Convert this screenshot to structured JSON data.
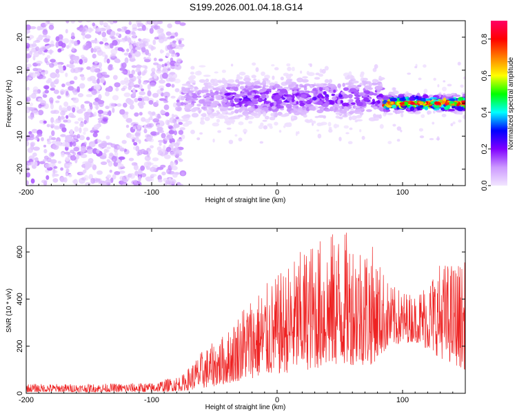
{
  "title": "S199.2026.001.04.18.G14",
  "chart_data": [
    {
      "type": "heatmap",
      "name": "spectrogram",
      "xlabel": "Height of straight line (km)",
      "ylabel": "Frequency (Hz)",
      "xlim": [
        -200,
        150
      ],
      "ylim": [
        -25,
        25
      ],
      "x_ticks": [
        -200,
        -100,
        0,
        100
      ],
      "x_tick_labels": [
        "-200",
        "-100",
        "0",
        "100"
      ],
      "y_ticks": [
        -20,
        -10,
        0,
        10,
        20
      ],
      "y_tick_labels": [
        "-20",
        "-10",
        "0",
        "10",
        "20"
      ],
      "colorbar": {
        "label": "Normalized spectral amplitude",
        "range": [
          0,
          0.9
        ],
        "ticks": [
          0,
          0.2,
          0.4,
          0.6,
          0.8
        ],
        "tick_labels": [
          "0.0",
          "0.2",
          "0.4",
          "0.6",
          "0.8"
        ],
        "colormap": [
          "#f2e6ff",
          "#cc99ff",
          "#8000ff",
          "#0000ff",
          "#00ffff",
          "#00ff00",
          "#ffff00",
          "#ff8000",
          "#ff0000",
          "#ff0066"
        ]
      },
      "regions": [
        {
          "x_range": [
            -200,
            -75
          ],
          "description": "broadband noise, freq spread -25..25 Hz",
          "amplitude": 0.1
        },
        {
          "x_range": [
            -75,
            85
          ],
          "center_hz": 1.5,
          "half_width_hz": 5,
          "amplitude": 0.2
        },
        {
          "x_range": [
            85,
            150
          ],
          "center_hz": 0,
          "half_width_hz": 2,
          "amplitude": 0.8
        }
      ]
    },
    {
      "type": "line",
      "name": "snr",
      "xlabel": "Height of straight line (km)",
      "ylabel": "SNR (10 * v/v)",
      "xlim": [
        -200,
        150
      ],
      "ylim": [
        0,
        700
      ],
      "x_ticks": [
        -200,
        -100,
        0,
        100
      ],
      "x_tick_labels": [
        "-200",
        "-100",
        "0",
        "100"
      ],
      "y_ticks": [
        0,
        200,
        400,
        600
      ],
      "y_tick_labels": [
        "0",
        "200",
        "400",
        "600"
      ],
      "color": "#ee2222",
      "envelope": [
        {
          "x": -200,
          "lo": 5,
          "hi": 40
        },
        {
          "x": -150,
          "lo": 5,
          "hi": 40
        },
        {
          "x": -100,
          "lo": 5,
          "hi": 45
        },
        {
          "x": -75,
          "lo": 10,
          "hi": 80
        },
        {
          "x": -60,
          "lo": 20,
          "hi": 180
        },
        {
          "x": -40,
          "lo": 40,
          "hi": 260
        },
        {
          "x": -25,
          "lo": 60,
          "hi": 400
        },
        {
          "x": 0,
          "lo": 80,
          "hi": 500
        },
        {
          "x": 25,
          "lo": 100,
          "hi": 640
        },
        {
          "x": 50,
          "lo": 120,
          "hi": 700
        },
        {
          "x": 75,
          "lo": 120,
          "hi": 640
        },
        {
          "x": 90,
          "lo": 200,
          "hi": 460
        },
        {
          "x": 110,
          "lo": 220,
          "hi": 420
        },
        {
          "x": 130,
          "lo": 150,
          "hi": 560
        },
        {
          "x": 150,
          "lo": 100,
          "hi": 560
        }
      ]
    }
  ]
}
